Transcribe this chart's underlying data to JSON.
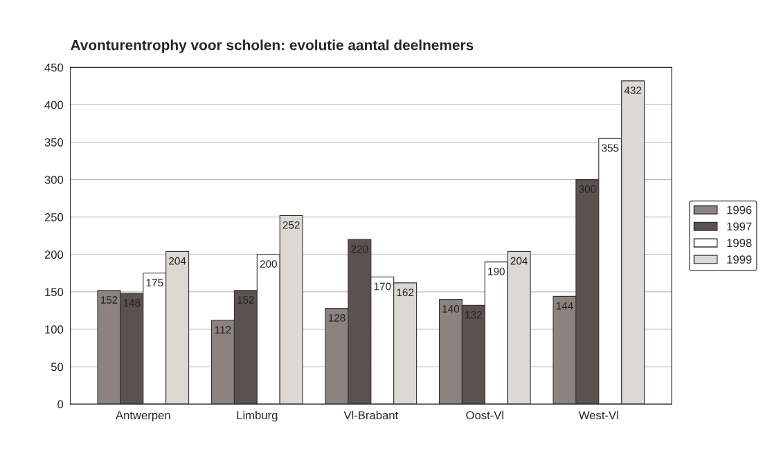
{
  "chart_data": {
    "type": "bar",
    "title": "Avonturentrophy voor scholen: evolutie aantal deelnemers",
    "categories": [
      "Antwerpen",
      "Limburg",
      "Vl-Brabant",
      "Oost-Vl",
      "West-Vl"
    ],
    "series": [
      {
        "name": "1996",
        "color": "#8c8380",
        "values": [
          152,
          112,
          128,
          140,
          144
        ]
      },
      {
        "name": "1997",
        "color": "#5b5250",
        "values": [
          148,
          152,
          220,
          132,
          300
        ]
      },
      {
        "name": "1998",
        "color": "#ffffff",
        "values": [
          175,
          200,
          170,
          190,
          355
        ]
      },
      {
        "name": "1999",
        "color": "#dcd8d4",
        "values": [
          204,
          252,
          162,
          204,
          432
        ]
      }
    ],
    "ylim": [
      0,
      450
    ],
    "yticks": [
      0,
      50,
      100,
      150,
      200,
      250,
      300,
      350,
      400,
      450
    ],
    "grid": "y",
    "legend": "right",
    "data_labels": true
  }
}
